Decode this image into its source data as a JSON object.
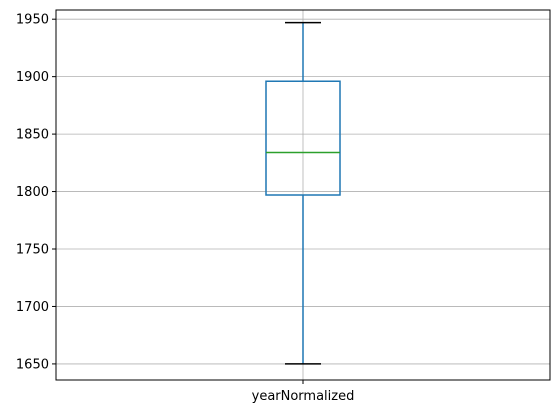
{
  "chart_data": {
    "type": "box",
    "categories": [
      "yearNormalized"
    ],
    "boxes": [
      {
        "category": "yearNormalized",
        "whisker_low": 1650,
        "q1": 1797,
        "median": 1834,
        "q3": 1896,
        "whisker_high": 1947
      }
    ],
    "title": "",
    "xlabel": "",
    "ylabel": "",
    "ylim": [
      1636,
      1958
    ],
    "yticks": [
      1650,
      1700,
      1750,
      1800,
      1850,
      1900,
      1950
    ],
    "grid": true,
    "colors": {
      "box": "#1f77b4",
      "median": "#2ca02c",
      "cap": "#000000",
      "grid": "#b0b0b0",
      "axes": "#000000"
    }
  }
}
